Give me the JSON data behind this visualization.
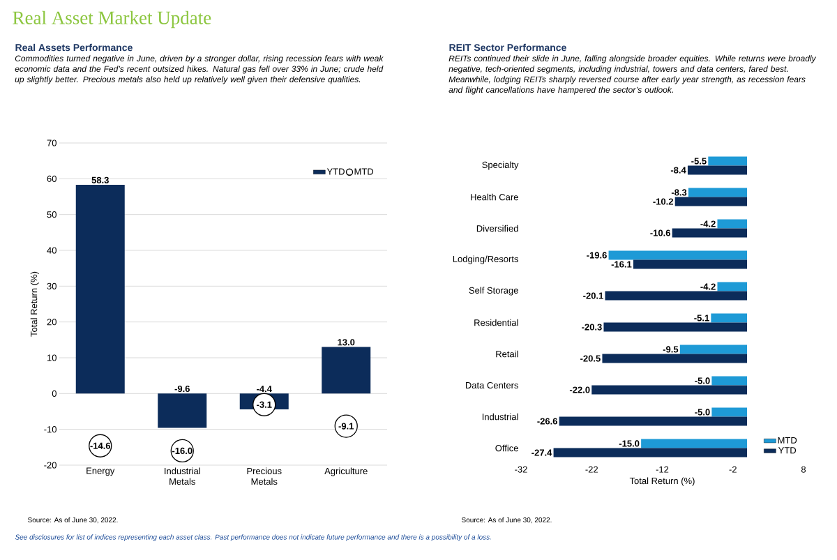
{
  "chart_data": [
    {
      "type": "bar",
      "title": "Real Assets Performance",
      "subtitle": "Commodities turned negative in June, driven by a stronger dollar, rising recession fears with weak economic data and the Fed’s recent outsized hikes. Natural gas fell over 33% in June; crude held up slightly better. Precious metals also held up relatively well given their defensive qualities.",
      "ylabel": "Total Return (%)",
      "categories": [
        "Energy",
        "Industrial Metals",
        "Precious Metals",
        "Agriculture"
      ],
      "series": [
        {
          "name": "YTD",
          "color": "#0c2c5a",
          "values": [
            58.3,
            -9.6,
            -4.4,
            13.0
          ],
          "value_labels": [
            "58.3",
            "-9.6",
            "-4.4",
            "13.0"
          ]
        },
        {
          "name": "MTD",
          "type": "scatter",
          "marker": "circle",
          "color": "#000000",
          "values": [
            -14.6,
            -16.0,
            -3.1,
            -9.1
          ],
          "value_labels": [
            "-14.6",
            "-16.0",
            "-3.1",
            "-9.1"
          ]
        }
      ],
      "ylim": [
        -20,
        70
      ],
      "yticks": [
        -20,
        -10,
        0,
        10,
        20,
        30,
        40,
        50,
        60,
        70
      ],
      "grid": "y",
      "legend": "top right",
      "annotations": [
        "Real Asset Market Update",
        "Source: As of June 30, 2022.",
        "See disclosures for list of indices representing each asset class. Past performance does not indicate future performance and there is a possibility of a loss."
      ]
    },
    {
      "type": "bar",
      "orientation": "horizontal",
      "title": "REIT Sector Performance",
      "subtitle": "REITs continued their slide in June, falling alongside broader equities. While returns were broadly negative, tech-oriented segments, including industrial, towers and data centers, fared best. Meanwhile, lodging REITs sharply reversed course after early year strength, as recession fears and flight cancellations have hampered the sector’s outlook.",
      "xlabel": "Total Return (%)",
      "categories": [
        "Specialty",
        "Health Care",
        "Diversified",
        "Lodging/Resorts",
        "Self Storage",
        "Residential",
        "Retail",
        "Data Centers",
        "Industrial",
        "Office"
      ],
      "series": [
        {
          "name": "MTD",
          "color": "#1e9ad6",
          "values": [
            -5.5,
            -8.3,
            -4.2,
            -19.6,
            -4.2,
            -5.1,
            -9.5,
            -5.0,
            -5.0,
            -15.0
          ],
          "value_labels": [
            "-5.5",
            "-8.3",
            "-4.2",
            "-19.6",
            "-4.2",
            "-5.1",
            "-9.5",
            "-5.0",
            "-5.0",
            "-15.0"
          ]
        },
        {
          "name": "YTD",
          "color": "#0c2c5a",
          "values": [
            -8.4,
            -10.2,
            -10.6,
            -16.1,
            -20.1,
            -20.3,
            -20.5,
            -22.0,
            -26.6,
            -27.4
          ],
          "value_labels": [
            "-8.4",
            "-10.2",
            "-10.6",
            "-16.1",
            "-20.1",
            "-20.3",
            "-20.5",
            "-22.0",
            "-26.6",
            "-27.4"
          ]
        }
      ],
      "xlim": [
        -32,
        8
      ],
      "xticks": [
        -32,
        -22,
        -12,
        -2,
        8
      ],
      "legend": "bottom right",
      "annotations": [
        "Source: As of June 30, 2022."
      ]
    }
  ]
}
